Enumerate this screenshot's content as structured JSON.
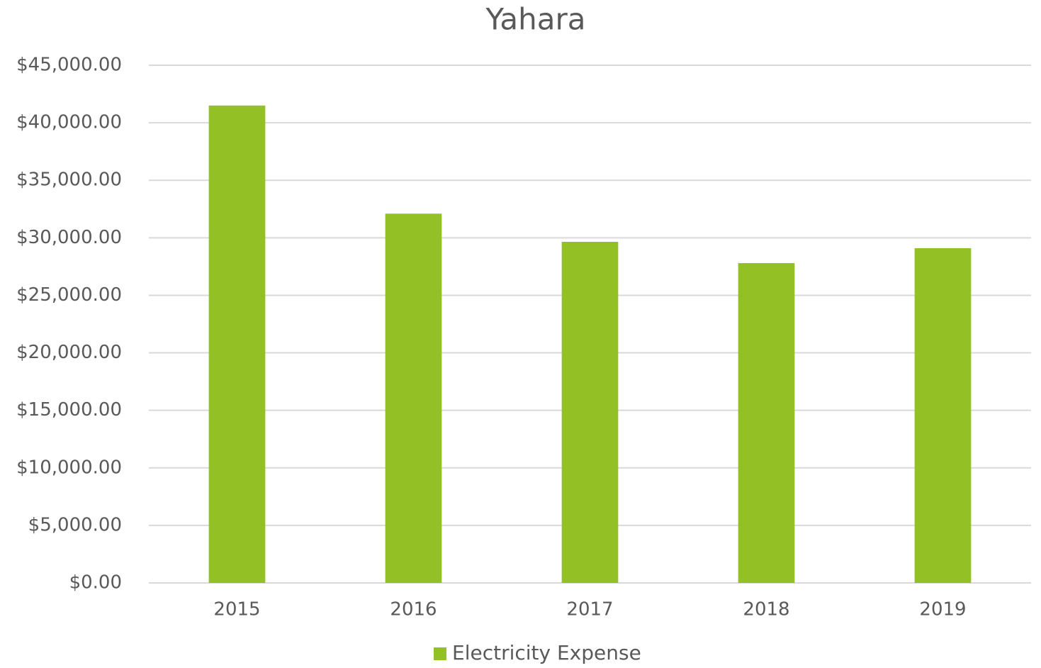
{
  "chart_data": {
    "type": "bar",
    "title": "Yahara",
    "categories": [
      "2015",
      "2016",
      "2017",
      "2018",
      "2019"
    ],
    "series": [
      {
        "name": "Electricity Expense",
        "color": "#93c125",
        "values": [
          41500,
          32100,
          29650,
          27800,
          29100
        ]
      }
    ],
    "ylim": [
      0,
      45000
    ],
    "yticks": [
      {
        "value": 0,
        "label": "$0.00"
      },
      {
        "value": 5000,
        "label": "$5,000.00"
      },
      {
        "value": 10000,
        "label": "$10,000.00"
      },
      {
        "value": 15000,
        "label": "$15,000.00"
      },
      {
        "value": 20000,
        "label": "$20,000.00"
      },
      {
        "value": 25000,
        "label": "$25,000.00"
      },
      {
        "value": 30000,
        "label": "$30,000.00"
      },
      {
        "value": 35000,
        "label": "$35,000.00"
      },
      {
        "value": 40000,
        "label": "$40,000.00"
      },
      {
        "value": 45000,
        "label": "$45,000.00"
      }
    ],
    "grid": true,
    "legend": "bottom"
  }
}
